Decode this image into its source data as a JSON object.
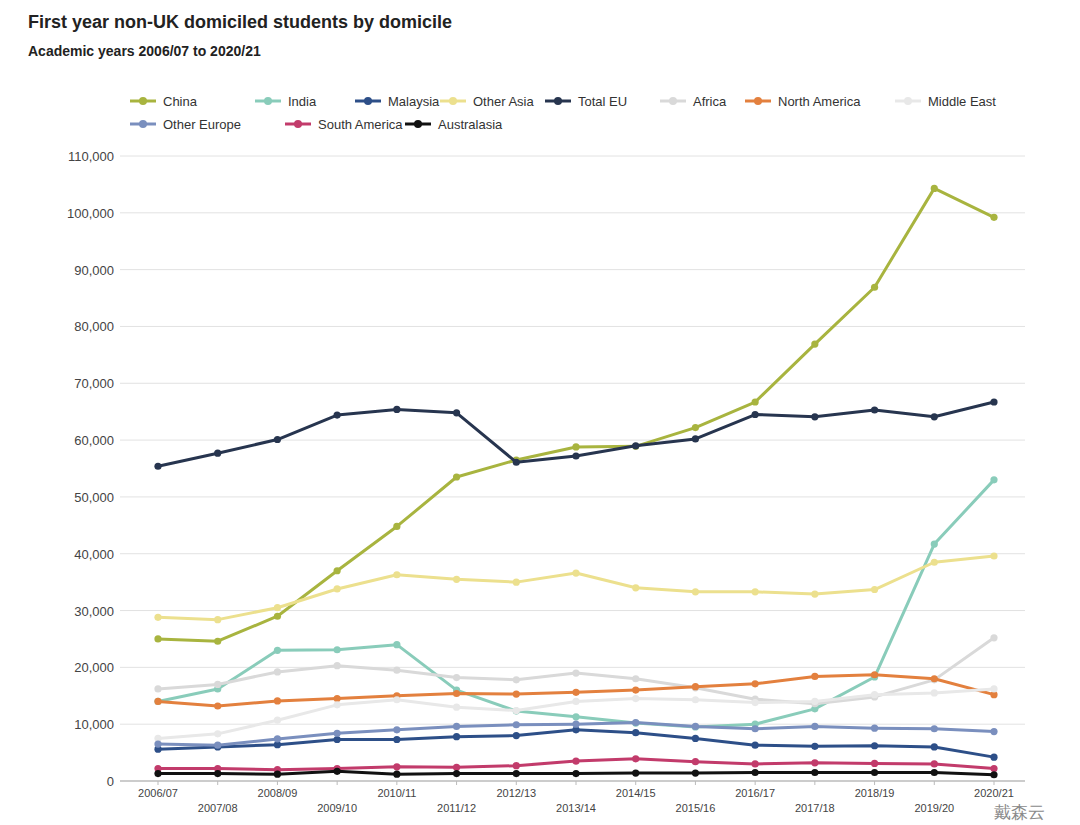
{
  "chart_data": {
    "type": "line",
    "title": "First year non-UK domiciled students by domicile",
    "subtitle": "Academic years 2006/07 to 2020/21",
    "categories": [
      "2006/07",
      "2007/08",
      "2008/09",
      "2009/10",
      "2010/11",
      "2011/12",
      "2012/13",
      "2013/14",
      "2014/15",
      "2015/16",
      "2016/17",
      "2017/18",
      "2018/19",
      "2019/20",
      "2020/21"
    ],
    "series": [
      {
        "name": "China",
        "color": "#a8b43f",
        "marker": "circle",
        "values": [
          25000,
          24600,
          29000,
          37000,
          44800,
          53500,
          56500,
          58800,
          58900,
          62200,
          66700,
          76900,
          86900,
          104300,
          99200
        ]
      },
      {
        "name": "India",
        "color": "#89ccba",
        "marker": "circle",
        "values": [
          14000,
          16200,
          23000,
          23100,
          24000,
          16000,
          12300,
          11300,
          10200,
          9500,
          10000,
          12700,
          18300,
          41700,
          53000
        ]
      },
      {
        "name": "Malaysia",
        "color": "#2d4f88",
        "marker": "circle",
        "values": [
          5600,
          6000,
          6400,
          7300,
          7300,
          7800,
          8000,
          9000,
          8500,
          7500,
          6300,
          6100,
          6200,
          6000,
          4200
        ]
      },
      {
        "name": "Other Asia",
        "color": "#ece08e",
        "marker": "circle",
        "values": [
          28800,
          28400,
          30500,
          33800,
          36300,
          35500,
          35000,
          36600,
          34000,
          33300,
          33300,
          32900,
          33700,
          38500,
          39600
        ]
      },
      {
        "name": "Total EU",
        "color": "#27354f",
        "marker": "circle",
        "values": [
          55400,
          57700,
          60100,
          64400,
          65400,
          64800,
          56100,
          57200,
          59000,
          60200,
          64500,
          64100,
          65300,
          64100,
          66700
        ]
      },
      {
        "name": "Africa",
        "color": "#d9d9d9",
        "marker": "circle",
        "values": [
          16200,
          17000,
          19200,
          20300,
          19500,
          18200,
          17800,
          19000,
          18000,
          16400,
          14400,
          13600,
          14800,
          17800,
          25200
        ]
      },
      {
        "name": "North America",
        "color": "#e3803e",
        "marker": "circle",
        "values": [
          14000,
          13200,
          14100,
          14500,
          15000,
          15400,
          15300,
          15600,
          16000,
          16600,
          17100,
          18400,
          18700,
          18000,
          15200
        ]
      },
      {
        "name": "Middle East",
        "color": "#e8e8e8",
        "marker": "circle",
        "values": [
          7500,
          8300,
          10700,
          13400,
          14300,
          13000,
          12400,
          14000,
          14500,
          14300,
          13800,
          14000,
          15200,
          15500,
          16200
        ]
      },
      {
        "name": "Other Europe",
        "color": "#7a8fbe",
        "marker": "circle",
        "values": [
          6500,
          6300,
          7400,
          8400,
          9000,
          9600,
          9900,
          10000,
          10300,
          9600,
          9200,
          9600,
          9300,
          9200,
          8700
        ]
      },
      {
        "name": "South America",
        "color": "#c23b6b",
        "marker": "circle",
        "values": [
          2200,
          2200,
          2000,
          2200,
          2500,
          2400,
          2700,
          3500,
          3900,
          3400,
          3000,
          3200,
          3100,
          3000,
          2200
        ]
      },
      {
        "name": "Australasia",
        "color": "#111111",
        "marker": "circle",
        "values": [
          1300,
          1300,
          1200,
          1700,
          1200,
          1300,
          1300,
          1300,
          1400,
          1400,
          1500,
          1500,
          1500,
          1500,
          1100
        ]
      }
    ],
    "ylim": [
      0,
      110000
    ],
    "yticks": [
      0,
      {
        "value": 10000,
        "label": "10,000"
      },
      {
        "value": 20000,
        "label": "20,000"
      },
      {
        "value": 30000,
        "label": "30,000"
      },
      {
        "value": 40000,
        "label": "40,000"
      },
      {
        "value": 50000,
        "label": "50,000"
      },
      {
        "value": 60000,
        "label": "60,000"
      },
      {
        "value": 70000,
        "label": "70,000"
      },
      {
        "value": 80000,
        "label": "80,000"
      },
      {
        "value": 90000,
        "label": "90,000"
      },
      {
        "value": 100000,
        "label": "100,000"
      },
      {
        "value": 110000,
        "label": "110,000"
      }
    ],
    "grid": true,
    "legend": "top",
    "annotations": [
      "戴森云"
    ]
  }
}
